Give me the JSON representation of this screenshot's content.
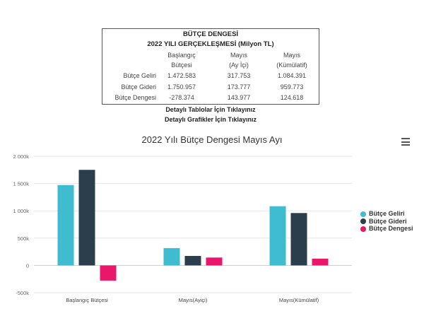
{
  "summary_table": {
    "title": "BÜTÇE DENGESİ",
    "subtitle": "2022 YILI GERÇEKLEŞMESİ (Milyon TL)",
    "headers": [
      [
        "Başlangıç",
        "Bütçesi"
      ],
      [
        "Mayıs",
        "(Ay İçi)"
      ],
      [
        "Mayıs",
        "(Kümülatif)"
      ]
    ],
    "rows": [
      {
        "label": "Bütçe Geliri",
        "values": [
          "1.472.583",
          "317.753",
          "1.084.391"
        ]
      },
      {
        "label": "Bütçe Gideri",
        "values": [
          "1.750.957",
          "173.777",
          "959.773"
        ]
      },
      {
        "label": "Bütçe Dengesi",
        "values": [
          "-278.374",
          "143.977",
          "124.618"
        ]
      }
    ]
  },
  "links": {
    "tables": "Detaylı Tablolar İçin Tıklayınız",
    "charts": "Detaylı Grafikler İçin Tıklayınız"
  },
  "chart_data": {
    "type": "bar",
    "title": "2022 Yılı Bütçe Dengesi Mayıs Ayı",
    "categories": [
      "Başlangıç Bütçesi",
      "Mayıs(Ayiçi)",
      "Mayıs(Kümülatif)"
    ],
    "series": [
      {
        "name": "Bütçe Geliri",
        "color": "#3fbcd0",
        "values": [
          1472583,
          317753,
          1084391
        ]
      },
      {
        "name": "Bütçe Gideri",
        "color": "#2b3e4c",
        "values": [
          1750957,
          173777,
          959773
        ]
      },
      {
        "name": "Bütçe Dengesi",
        "color": "#e8176a",
        "values": [
          -278374,
          143977,
          124618
        ]
      }
    ],
    "ylim": [
      -500000,
      2000000
    ],
    "yticks": [
      -500000,
      0,
      500000,
      1000000,
      1500000,
      2000000
    ],
    "ytick_labels": [
      "-500k",
      "0",
      "500k",
      "1 000k",
      "1 500k",
      "2 000k"
    ],
    "grid": true,
    "legend": "right"
  }
}
